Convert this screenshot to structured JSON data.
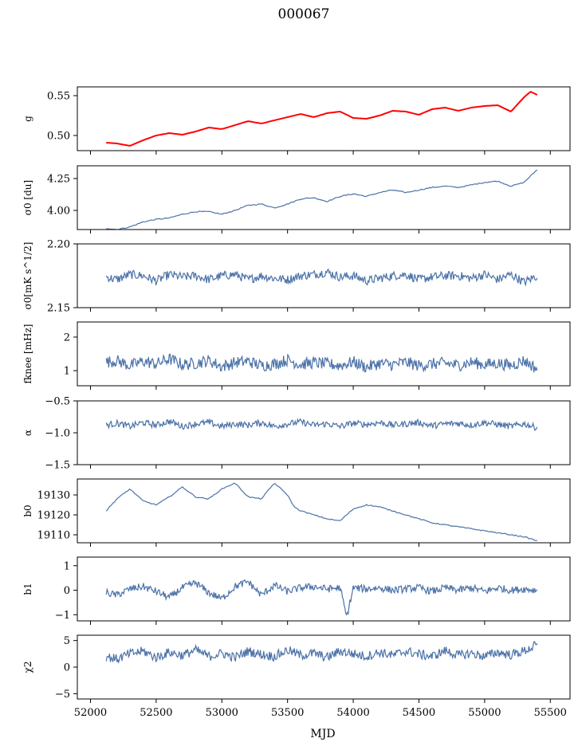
{
  "chart_data": {
    "type": "line",
    "title": "000067",
    "xlabel": "MJD",
    "xlim": [
      51900,
      55650
    ],
    "xticks": [
      52000,
      52500,
      53000,
      53500,
      54000,
      54500,
      55000,
      55500
    ],
    "x_start": 52120,
    "x_end": 55400,
    "colors": {
      "series": "#4c72a8",
      "fit": "#ff0000"
    },
    "panels": [
      {
        "id": "g",
        "ylabel": "g",
        "ylim": [
          0.481,
          0.561
        ],
        "yticks": [
          0.5,
          0.55
        ],
        "ytick_labels": [
          "0.50",
          "0.55"
        ],
        "x": [
          52120,
          52200,
          52300,
          52400,
          52500,
          52600,
          52700,
          52800,
          52900,
          53000,
          53100,
          53200,
          53300,
          53400,
          53500,
          53600,
          53700,
          53800,
          53900,
          54000,
          54100,
          54200,
          54300,
          54400,
          54500,
          54600,
          54700,
          54800,
          54900,
          55000,
          55100,
          55150,
          55200,
          55300,
          55350,
          55400
        ],
        "values": [
          0.491,
          0.49,
          0.487,
          0.494,
          0.5,
          0.503,
          0.501,
          0.505,
          0.51,
          0.508,
          0.513,
          0.518,
          0.515,
          0.519,
          0.523,
          0.527,
          0.523,
          0.528,
          0.53,
          0.522,
          0.521,
          0.525,
          0.531,
          0.53,
          0.526,
          0.533,
          0.535,
          0.531,
          0.535,
          0.537,
          0.538,
          0.534,
          0.53,
          0.548,
          0.555,
          0.551
        ],
        "overlay": {
          "name": "",
          "color": "#ff0000"
        }
      },
      {
        "id": "sigma0-du",
        "ylabel": "σ0 [du]",
        "ylim": [
          3.85,
          4.35
        ],
        "yticks": [
          4.0,
          4.25
        ],
        "ytick_labels": [
          "4.00",
          "4.25"
        ],
        "x": [
          52120,
          52200,
          52300,
          52400,
          52500,
          52600,
          52700,
          52800,
          52900,
          53000,
          53100,
          53200,
          53300,
          53400,
          53500,
          53600,
          53700,
          53800,
          53900,
          54000,
          54100,
          54200,
          54300,
          54400,
          54500,
          54600,
          54700,
          54800,
          54900,
          55000,
          55100,
          55200,
          55300,
          55350,
          55400
        ],
        "values": [
          3.86,
          3.85,
          3.87,
          3.91,
          3.93,
          3.94,
          3.97,
          3.99,
          3.99,
          3.97,
          4.0,
          4.04,
          4.05,
          4.02,
          4.05,
          4.09,
          4.1,
          4.07,
          4.11,
          4.13,
          4.11,
          4.14,
          4.16,
          4.14,
          4.16,
          4.18,
          4.19,
          4.18,
          4.2,
          4.22,
          4.23,
          4.19,
          4.22,
          4.27,
          4.32
        ]
      },
      {
        "id": "sigma0-mk",
        "ylabel": "σ0[mK s^1/2]",
        "ylim": [
          2.15,
          2.2
        ],
        "yticks": [
          2.15,
          2.2
        ],
        "ytick_labels": [
          "2.15",
          "2.20"
        ],
        "x": [
          52120,
          52200,
          52300,
          52400,
          52500,
          52600,
          52700,
          52800,
          52900,
          53000,
          53100,
          53200,
          53300,
          53400,
          53500,
          53600,
          53700,
          53800,
          53900,
          54000,
          54100,
          54200,
          54300,
          54400,
          54500,
          54600,
          54700,
          54800,
          54900,
          55000,
          55100,
          55200,
          55300,
          55400
        ],
        "values": [
          2.174,
          2.172,
          2.176,
          2.175,
          2.171,
          2.176,
          2.174,
          2.175,
          2.172,
          2.175,
          2.176,
          2.172,
          2.175,
          2.173,
          2.172,
          2.175,
          2.176,
          2.178,
          2.174,
          2.175,
          2.171,
          2.173,
          2.175,
          2.176,
          2.172,
          2.174,
          2.175,
          2.175,
          2.173,
          2.176,
          2.172,
          2.176,
          2.17,
          2.175
        ]
      },
      {
        "id": "fknee",
        "ylabel": "fknee [mHz]",
        "ylim": [
          0.55,
          2.45
        ],
        "yticks": [
          1,
          2
        ],
        "ytick_labels": [
          "1",
          "2"
        ],
        "x": [
          52120,
          52200,
          52300,
          52400,
          52500,
          52600,
          52700,
          52800,
          52900,
          53000,
          53100,
          53200,
          53300,
          53400,
          53500,
          53600,
          53700,
          53800,
          53900,
          54000,
          54100,
          54200,
          54300,
          54400,
          54500,
          54600,
          54700,
          54800,
          54900,
          55000,
          55100,
          55200,
          55300,
          55400
        ],
        "values": [
          1.25,
          1.3,
          1.15,
          1.28,
          1.2,
          1.35,
          1.18,
          1.22,
          1.3,
          1.12,
          1.24,
          1.28,
          1.15,
          1.2,
          1.32,
          1.18,
          1.24,
          1.2,
          1.15,
          1.26,
          1.1,
          1.22,
          1.18,
          1.25,
          1.15,
          1.2,
          1.22,
          1.16,
          1.25,
          1.18,
          1.22,
          1.15,
          1.3,
          1.05
        ]
      },
      {
        "id": "alpha",
        "ylabel": "α",
        "ylim": [
          -1.5,
          -0.5
        ],
        "yticks": [
          -1.5,
          -1.0,
          -0.5
        ],
        "ytick_labels": [
          "−1.5",
          "−1.0",
          "−0.5"
        ],
        "x": [
          52120,
          52200,
          52300,
          52400,
          52500,
          52600,
          52700,
          52800,
          52900,
          53000,
          53100,
          53200,
          53300,
          53400,
          53500,
          53600,
          53700,
          53800,
          53900,
          54000,
          54100,
          54200,
          54300,
          54400,
          54500,
          54600,
          54700,
          54800,
          54900,
          55000,
          55100,
          55200,
          55300,
          55400
        ],
        "values": [
          -0.88,
          -0.85,
          -0.9,
          -0.84,
          -0.88,
          -0.82,
          -0.9,
          -0.86,
          -0.84,
          -0.9,
          -0.86,
          -0.88,
          -0.84,
          -0.9,
          -0.86,
          -0.83,
          -0.88,
          -0.86,
          -0.9,
          -0.85,
          -0.87,
          -0.84,
          -0.88,
          -0.86,
          -0.84,
          -0.89,
          -0.86,
          -0.85,
          -0.88,
          -0.84,
          -0.87,
          -0.9,
          -0.86,
          -0.92
        ]
      },
      {
        "id": "b0",
        "ylabel": "b0",
        "ylim": [
          19106,
          19138
        ],
        "yticks": [
          19110,
          19120,
          19130
        ],
        "ytick_labels": [
          "19110",
          "19120",
          "19130"
        ],
        "x": [
          52120,
          52200,
          52300,
          52400,
          52500,
          52600,
          52700,
          52800,
          52900,
          53000,
          53100,
          53200,
          53300,
          53400,
          53500,
          53550,
          53600,
          53700,
          53800,
          53900,
          54000,
          54100,
          54200,
          54300,
          54400,
          54500,
          54600,
          54700,
          54800,
          54900,
          55000,
          55100,
          55200,
          55300,
          55400
        ],
        "values": [
          19122,
          19128,
          19133,
          19127,
          19125,
          19129,
          19134,
          19129,
          19128,
          19133,
          19136,
          19129,
          19128,
          19136,
          19130,
          19124,
          19122,
          19120,
          19118,
          19117,
          19123,
          19125,
          19124,
          19122,
          19120,
          19118,
          19116,
          19115,
          19114,
          19113,
          19112,
          19111,
          19110,
          19109,
          19107
        ]
      },
      {
        "id": "b1",
        "ylabel": "b1",
        "ylim": [
          -1.25,
          1.35
        ],
        "yticks": [
          -1,
          0,
          1
        ],
        "ytick_labels": [
          "−1",
          "0",
          "1"
        ],
        "x": [
          52120,
          52200,
          52300,
          52400,
          52500,
          52600,
          52700,
          52800,
          52900,
          53000,
          53100,
          53200,
          53300,
          53400,
          53500,
          53600,
          53700,
          53800,
          53900,
          53950,
          54000,
          54100,
          54200,
          54300,
          54400,
          54500,
          54600,
          54700,
          54800,
          54900,
          55000,
          55100,
          55200,
          55300,
          55400
        ],
        "values": [
          -0.1,
          -0.2,
          0.05,
          0.15,
          -0.05,
          -0.3,
          0.1,
          0.3,
          -0.1,
          -0.35,
          0.15,
          0.35,
          -0.2,
          0.2,
          -0.05,
          0.1,
          0.15,
          0.05,
          0.1,
          -1.1,
          0.1,
          0.05,
          0.1,
          0.0,
          0.05,
          0.1,
          -0.05,
          0.1,
          0.0,
          0.1,
          -0.05,
          0.1,
          0.0,
          0.05,
          0.0
        ]
      },
      {
        "id": "chi2",
        "ylabel": "χ2",
        "ylim": [
          -6,
          6
        ],
        "yticks": [
          -5,
          0,
          5
        ],
        "ytick_labels": [
          "−5",
          "0",
          "5"
        ],
        "x": [
          52120,
          52200,
          52300,
          52400,
          52500,
          52600,
          52700,
          52800,
          52900,
          53000,
          53100,
          53200,
          53300,
          53400,
          53500,
          53600,
          53700,
          53800,
          53900,
          54000,
          54100,
          54200,
          54300,
          54400,
          54500,
          54600,
          54700,
          54800,
          54900,
          55000,
          55100,
          55200,
          55300,
          55400
        ],
        "values": [
          2.0,
          1.5,
          2.5,
          3.0,
          1.8,
          2.8,
          2.2,
          3.2,
          2.0,
          2.6,
          1.8,
          3.0,
          2.4,
          2.0,
          3.2,
          2.2,
          2.6,
          1.8,
          3.0,
          2.5,
          2.0,
          2.8,
          2.2,
          3.0,
          2.4,
          2.0,
          3.1,
          2.2,
          2.6,
          2.0,
          2.8,
          2.3,
          3.0,
          4.2
        ]
      }
    ]
  }
}
